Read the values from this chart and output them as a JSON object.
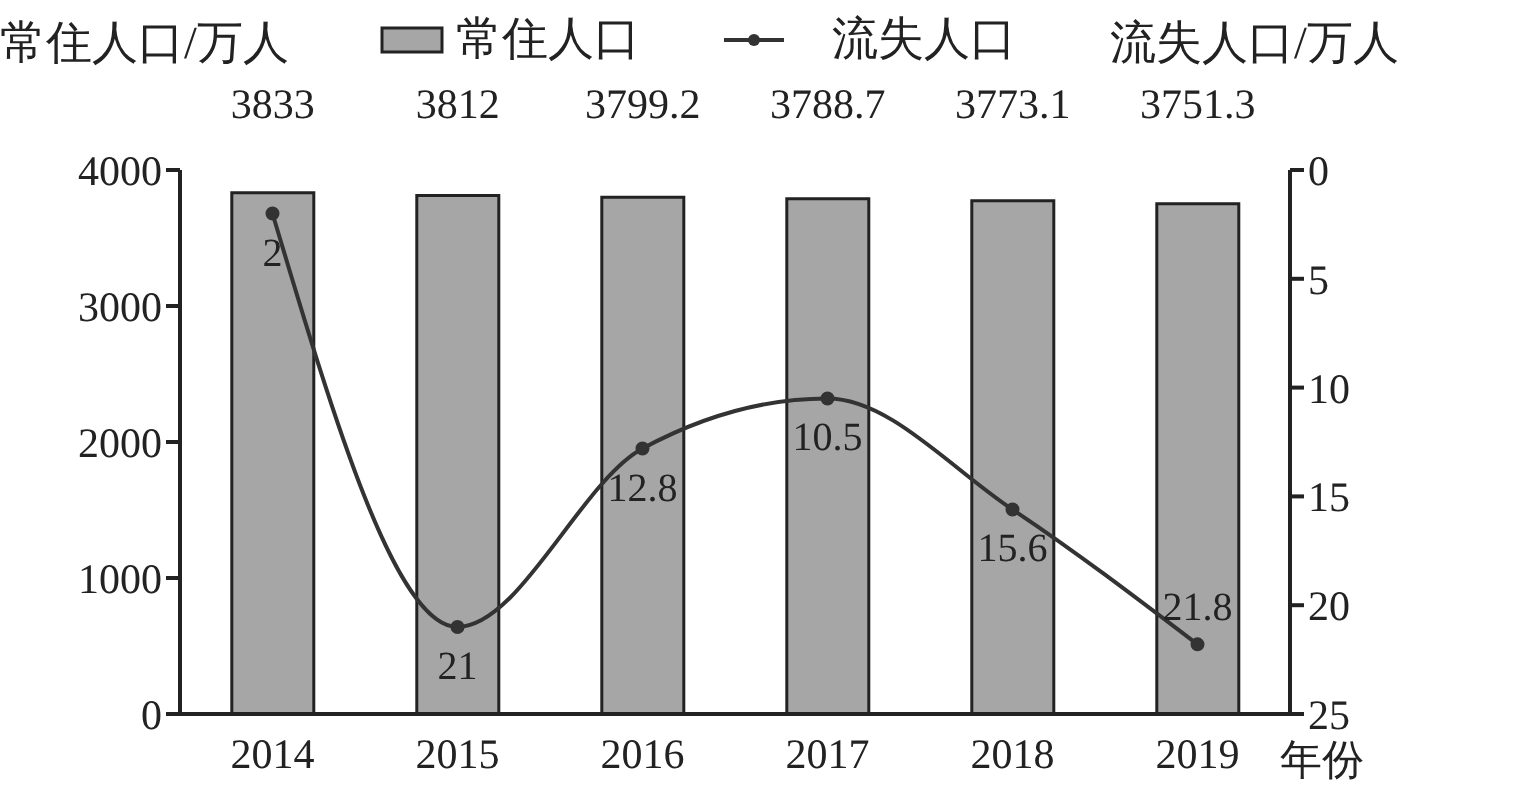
{
  "chart_data": {
    "type": "bar",
    "ylabel": "常住人口/万人",
    "y2label": "流失人口/万人",
    "xlabel": "年份",
    "categories": [
      "2014",
      "2015",
      "2016",
      "2017",
      "2018",
      "2019"
    ],
    "series": [
      {
        "name": "常住人口",
        "color": "#a6a6a6",
        "values": [
          3833,
          3812,
          3799.2,
          3788.7,
          3773.1,
          3751.3
        ]
      },
      {
        "name": "流失人口",
        "type": "line",
        "axis": "y2",
        "color": "#333333",
        "values": [
          2,
          21,
          12.8,
          10.5,
          15.6,
          21.8
        ]
      }
    ],
    "ylim": [
      0,
      4000
    ],
    "yticks": [
      0,
      1000,
      2000,
      3000,
      4000
    ],
    "y2lim": [
      25,
      0
    ],
    "y2ticks": [
      0,
      5,
      10,
      15,
      20,
      25
    ],
    "data_labels": true,
    "legend": "top",
    "marker": "circle",
    "grid": false
  }
}
